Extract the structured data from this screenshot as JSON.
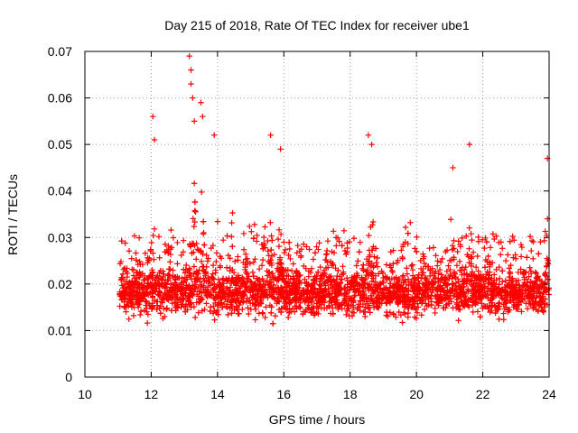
{
  "chart_data": {
    "type": "scatter",
    "title": "Day 215 of 2018, Rate Of TEC Index for receiver ube1",
    "xlabel": "GPS time / hours",
    "ylabel": "ROTI / TECUs",
    "xlim": [
      10,
      24
    ],
    "ylim": [
      0,
      0.07
    ],
    "xticks": [
      10,
      12,
      14,
      16,
      18,
      20,
      22,
      24
    ],
    "xtick_labels": [
      "10",
      "12",
      "14",
      "16",
      "18",
      "20",
      "22",
      "24"
    ],
    "yticks": [
      0,
      0.01,
      0.02,
      0.03,
      0.04,
      0.05,
      0.06,
      0.07
    ],
    "ytick_labels": [
      "0",
      "0.01",
      "0.02",
      "0.03",
      "0.04",
      "0.05",
      "0.06",
      "0.07"
    ],
    "grid": true,
    "marker": "+",
    "color": "#ff0000",
    "series": [
      {
        "name": "ROTI",
        "x_start": 11.05,
        "x_end": 24.0,
        "typical_range": [
          0.008,
          0.03
        ],
        "notable_points": [
          {
            "x": 12.05,
            "y": 0.056
          },
          {
            "x": 12.1,
            "y": 0.051
          },
          {
            "x": 13.15,
            "y": 0.069
          },
          {
            "x": 13.2,
            "y": 0.066
          },
          {
            "x": 13.2,
            "y": 0.063
          },
          {
            "x": 13.25,
            "y": 0.06
          },
          {
            "x": 13.3,
            "y": 0.055
          },
          {
            "x": 13.5,
            "y": 0.059
          },
          {
            "x": 13.55,
            "y": 0.056
          },
          {
            "x": 13.9,
            "y": 0.052
          },
          {
            "x": 15.6,
            "y": 0.052
          },
          {
            "x": 15.9,
            "y": 0.049
          },
          {
            "x": 18.55,
            "y": 0.052
          },
          {
            "x": 18.65,
            "y": 0.05
          },
          {
            "x": 21.6,
            "y": 0.05
          },
          {
            "x": 21.1,
            "y": 0.045
          },
          {
            "x": 23.95,
            "y": 0.047
          }
        ]
      }
    ]
  }
}
